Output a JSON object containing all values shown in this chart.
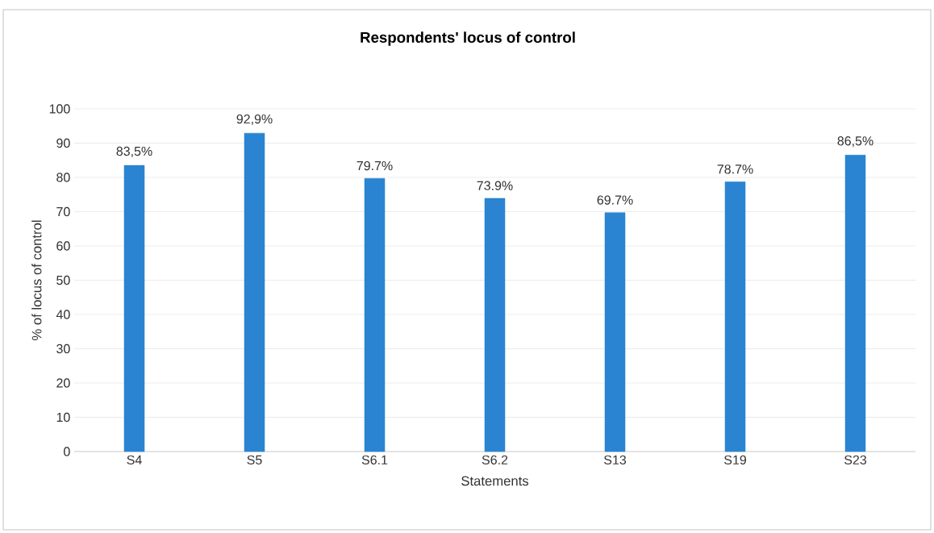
{
  "chart_data": {
    "type": "bar",
    "title": "Respondents' locus of control",
    "xlabel": "Statements",
    "ylabel": "% of locus of control",
    "categories": [
      "S4",
      "S5",
      "S6.1",
      "S6.2",
      "S13",
      "S19",
      "S23"
    ],
    "values": [
      83.5,
      92.9,
      79.7,
      73.9,
      69.7,
      78.7,
      86.5
    ],
    "value_labels": [
      "83,5%",
      "92,9%",
      "79.7%",
      "73.9%",
      "69.7%",
      "78.7%",
      "86,5%"
    ],
    "color": "#2a84d2",
    "ylim": [
      0,
      100
    ],
    "yticks": [
      0,
      10,
      20,
      30,
      40,
      50,
      60,
      70,
      80,
      90,
      100
    ],
    "grid": "y"
  }
}
